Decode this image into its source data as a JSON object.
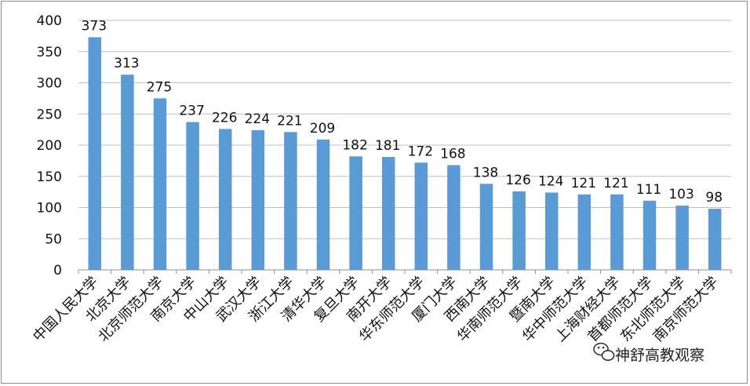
{
  "chart_data": {
    "type": "bar",
    "categories": [
      "中国人民大学",
      "北京大学",
      "北京师范大学",
      "南京大学",
      "中山大学",
      "武汉大学",
      "浙江大学",
      "清华大学",
      "复旦大学",
      "南开大学",
      "华东师范大学",
      "厦门大学",
      "西南大学",
      "华南师范大学",
      "暨南大学",
      "华中师范大学",
      "上海财经大学",
      "首都师范大学",
      "东北师范大学",
      "南京师范大学"
    ],
    "values": [
      373,
      313,
      275,
      237,
      226,
      224,
      221,
      209,
      182,
      181,
      172,
      168,
      138,
      126,
      124,
      121,
      121,
      111,
      103,
      98
    ],
    "yticks": [
      0,
      50,
      100,
      150,
      200,
      250,
      300,
      350,
      400
    ],
    "ylim": [
      0,
      400
    ],
    "grid": true,
    "legend": "none",
    "bar_color": "#5b9bd5",
    "grid_color": "#bfbfbf"
  },
  "watermark": {
    "text": "神舒高教观察",
    "icon": "wechat-icon"
  }
}
